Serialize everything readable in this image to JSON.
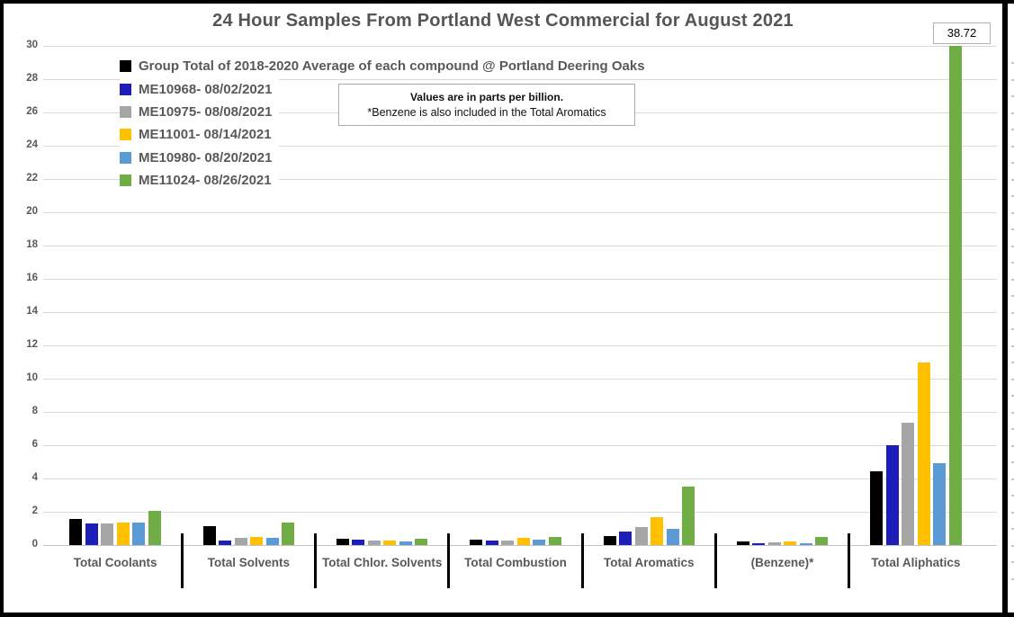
{
  "title": "24 Hour Samples From Portland West Commercial for August 2021",
  "note": {
    "line1": "Values are in parts per billion.",
    "line2": "*Benzene is also included in the Total Aromatics"
  },
  "chart_data": {
    "type": "bar",
    "title": "24 Hour Samples From Portland West Commercial for August 2021",
    "units": "parts per billion",
    "categories": [
      "Total Coolants",
      "Total Solvents",
      "Total Chlor. Solvents",
      "Total Combustion",
      "Total Aromatics",
      "(Benzene)*",
      "Total Aliphatics"
    ],
    "series": [
      {
        "name": "Group Total of 2018-2020 Average of each compound @ Portland Deering Oaks",
        "color": "#000000",
        "values": [
          1.55,
          1.15,
          0.4,
          0.3,
          0.55,
          0.2,
          4.45
        ]
      },
      {
        "name": "ME10968- 08/02/2021",
        "color": "#1d1db8",
        "values": [
          1.3,
          0.25,
          0.35,
          0.25,
          0.8,
          0.1,
          6.0
        ]
      },
      {
        "name": "ME10975- 08/08/2021",
        "color": "#a6a6a6",
        "values": [
          1.3,
          0.45,
          0.25,
          0.25,
          1.1,
          0.15,
          7.35
        ]
      },
      {
        "name": "ME11001- 08/14/2021",
        "color": "#ffc000",
        "values": [
          1.35,
          0.5,
          0.25,
          0.45,
          1.65,
          0.2,
          11.0
        ]
      },
      {
        "name": "ME10980- 08/20/2021",
        "color": "#5b9bd5",
        "values": [
          1.35,
          0.45,
          0.2,
          0.3,
          0.95,
          0.1,
          4.9
        ]
      },
      {
        "name": "ME11024- 08/26/2021",
        "color": "#70ad47",
        "values": [
          2.05,
          1.35,
          0.4,
          0.5,
          3.5,
          0.5,
          38.72
        ]
      }
    ],
    "ylim": [
      0,
      30
    ],
    "yticks": [
      0,
      2,
      4,
      6,
      8,
      10,
      12,
      14,
      16,
      18,
      20,
      22,
      24,
      26,
      28,
      30
    ],
    "grid": true,
    "legend_position": "inside-top-left",
    "data_label": {
      "series": "ME11024- 08/26/2021",
      "category": "Total Aliphatics",
      "value": 38.72,
      "text": "38.72"
    }
  }
}
